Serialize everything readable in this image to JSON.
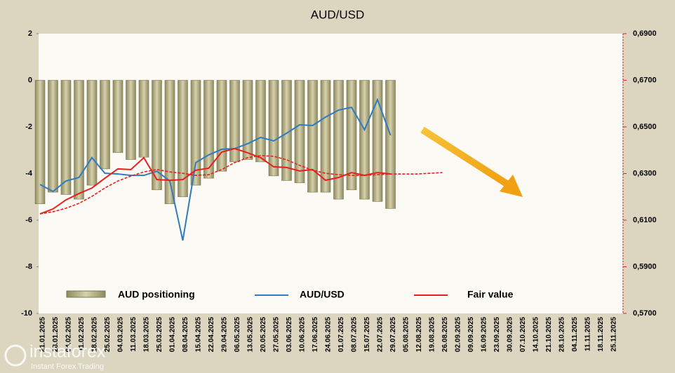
{
  "chart_data": {
    "type": "bar-line",
    "title": "AUD/USD",
    "categories": [
      "21.01.2025",
      "28.01.2025",
      "04.02.2025",
      "11.02.2025",
      "18.02.2025",
      "25.02.2025",
      "04.03.2025",
      "11.03.2025",
      "18.03.2025",
      "25.03.2025",
      "01.04.2025",
      "08.04.2025",
      "15.04.2025",
      "22.04.2025",
      "29.04.2025",
      "06.05.2025",
      "13.05.2025",
      "20.05.2025",
      "27.05.2025",
      "03.06.2025",
      "10.06.2025",
      "17.06.2025",
      "24.06.2025",
      "01.07.2025",
      "08.07.2025",
      "15.07.2025",
      "22.07.2025",
      "29.07.2025",
      "05.08.2025",
      "12.08.2025",
      "19.08.2025",
      "26.08.2025",
      "02.09.2025",
      "09.09.2025",
      "16.09.2025",
      "23.09.2025",
      "30.09.2025",
      "07.10.2025",
      "14.10.2025",
      "21.10.2025",
      "28.10.2025",
      "04.11.2025",
      "11.11.2025",
      "18.11.2025",
      "25.11.2025"
    ],
    "series": [
      {
        "name": "AUD positioning",
        "type": "bar",
        "color": "#bdb78f",
        "axis": "y",
        "values": [
          -5.3,
          -4.8,
          -4.9,
          -5.1,
          -4.5,
          -3.8,
          -3.1,
          -3.4,
          -3.3,
          -4.7,
          -5.3,
          -5.0,
          -4.5,
          -4.2,
          -3.9,
          -3.5,
          -3.4,
          -3.5,
          -4.1,
          -4.3,
          -4.4,
          -4.8,
          -4.8,
          -5.1,
          -4.7,
          -5.1,
          -5.2,
          -5.5,
          null,
          null,
          null,
          null,
          null,
          null,
          null,
          null,
          null,
          null,
          null,
          null,
          null,
          null,
          null,
          null,
          null
        ]
      },
      {
        "name": "AUD/USD",
        "type": "line",
        "color": "#2e7cc0",
        "axis": "y2",
        "values": [
          0.6253,
          0.6223,
          0.6268,
          0.6283,
          0.6368,
          0.6301,
          0.6298,
          0.6292,
          0.6292,
          0.631,
          0.6268,
          0.6013,
          0.6347,
          0.638,
          0.6404,
          0.6407,
          0.6428,
          0.6455,
          0.644,
          0.6473,
          0.6509,
          0.6506,
          0.6542,
          0.6572,
          0.6584,
          0.6488,
          0.6617,
          0.6464,
          null,
          null,
          null,
          null,
          null,
          null,
          null,
          null,
          null,
          null,
          null,
          null,
          null,
          null,
          null,
          null,
          null
        ]
      },
      {
        "name": "Fair value",
        "type": "line",
        "color": "#e8201c",
        "axis": "y2",
        "values": [
          0.6127,
          0.6148,
          0.6187,
          0.6214,
          0.6238,
          0.628,
          0.632,
          0.6317,
          0.6368,
          0.6274,
          0.6271,
          0.6274,
          0.6314,
          0.6323,
          0.6392,
          0.6407,
          0.6389,
          0.6368,
          0.6329,
          0.6326,
          0.6311,
          0.6317,
          0.6271,
          0.6283,
          0.6304,
          0.6292,
          0.6304,
          0.6298,
          null,
          null,
          null,
          null,
          null,
          null,
          null,
          null,
          null,
          null,
          null,
          null,
          null,
          null,
          null,
          null,
          null
        ]
      },
      {
        "type": "line",
        "dashed": true,
        "color": "#e8201c",
        "axis": "y2",
        "values": [
          0.6127,
          0.6136,
          0.6151,
          0.6172,
          0.6202,
          0.6238,
          0.6268,
          0.6289,
          0.6307,
          0.6317,
          0.6307,
          0.6301,
          0.6292,
          0.6295,
          0.6317,
          0.6347,
          0.6368,
          0.6377,
          0.6374,
          0.6359,
          0.6335,
          0.6314,
          0.6301,
          0.6295,
          0.6292,
          0.6292,
          0.6295,
          0.6298,
          0.6298,
          0.6298,
          0.6301,
          0.6304,
          null,
          null,
          null,
          null,
          null,
          null,
          null,
          null,
          null,
          null,
          null,
          null,
          null
        ]
      }
    ],
    "ylim": [
      -10,
      2
    ],
    "yticks": [
      2,
      0,
      -2,
      -4,
      -6,
      -8,
      -10
    ],
    "y2lim": [
      0.57,
      0.69
    ],
    "y2ticks": [
      {
        "value": 0.69,
        "label": "0,6900"
      },
      {
        "value": 0.67,
        "label": "0,6700"
      },
      {
        "value": 0.65,
        "label": "0,6500"
      },
      {
        "value": 0.63,
        "label": "0,6300"
      },
      {
        "value": 0.61,
        "label": "0,6100"
      },
      {
        "value": 0.59,
        "label": "0,5900"
      },
      {
        "value": 0.57,
        "label": "0,5700"
      }
    ],
    "legend": "bottom",
    "watermark": {
      "brand": "instaforex",
      "tagline": "Instant Forex Trading"
    }
  }
}
